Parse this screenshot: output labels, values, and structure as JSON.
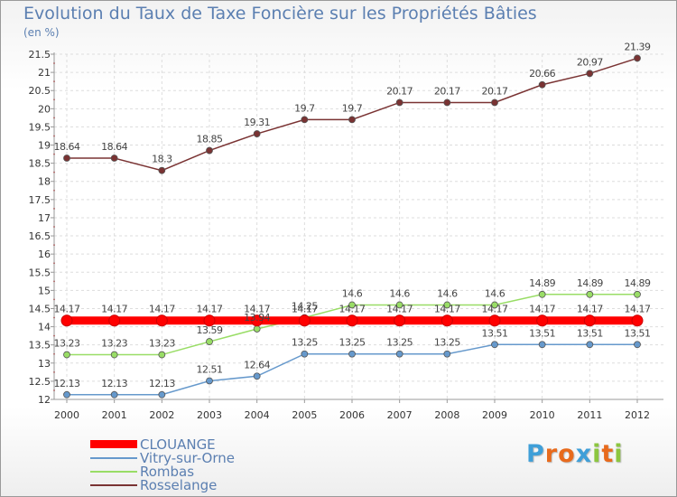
{
  "chart_data": {
    "type": "line",
    "title": "Evolution du Taux de Taxe Foncière sur les Propriétés Bâties",
    "ylabel": "(en %)",
    "xlabel": "",
    "ylim": [
      12,
      21.5
    ],
    "ystep": 0.5,
    "categories": [
      "2000",
      "2001",
      "2002",
      "2003",
      "2004",
      "2005",
      "2006",
      "2007",
      "2008",
      "2009",
      "2010",
      "2011",
      "2012"
    ],
    "series": [
      {
        "name": "CLOUANGE",
        "color": "#ff0000",
        "emphasis": true,
        "values": [
          14.17,
          14.17,
          14.17,
          14.17,
          14.17,
          14.17,
          14.17,
          14.17,
          14.17,
          14.17,
          14.17,
          14.17,
          14.17
        ]
      },
      {
        "name": "Vitry-sur-Orne",
        "color": "#6699cc",
        "values": [
          12.13,
          12.13,
          12.13,
          12.51,
          12.64,
          13.25,
          13.25,
          13.25,
          13.25,
          13.51,
          13.51,
          13.51,
          13.51
        ]
      },
      {
        "name": "Rombas",
        "color": "#99dd66",
        "values": [
          13.23,
          13.23,
          13.23,
          13.59,
          13.94,
          14.25,
          14.6,
          14.6,
          14.6,
          14.6,
          14.89,
          14.89,
          14.89
        ]
      },
      {
        "name": "Rosselange",
        "color": "#7a3333",
        "values": [
          18.64,
          18.64,
          18.3,
          18.85,
          19.31,
          19.7,
          19.7,
          20.17,
          20.17,
          20.17,
          20.66,
          20.97,
          21.39
        ]
      }
    ]
  },
  "brand": {
    "letters": [
      "P",
      "r",
      "o",
      "x",
      "i",
      "t",
      "i"
    ],
    "colors": [
      "#3f9fd8",
      "#e86a1c",
      "#e86a1c",
      "#3f9fd8",
      "#8cc63f",
      "#e86a1c",
      "#8cc63f"
    ]
  }
}
